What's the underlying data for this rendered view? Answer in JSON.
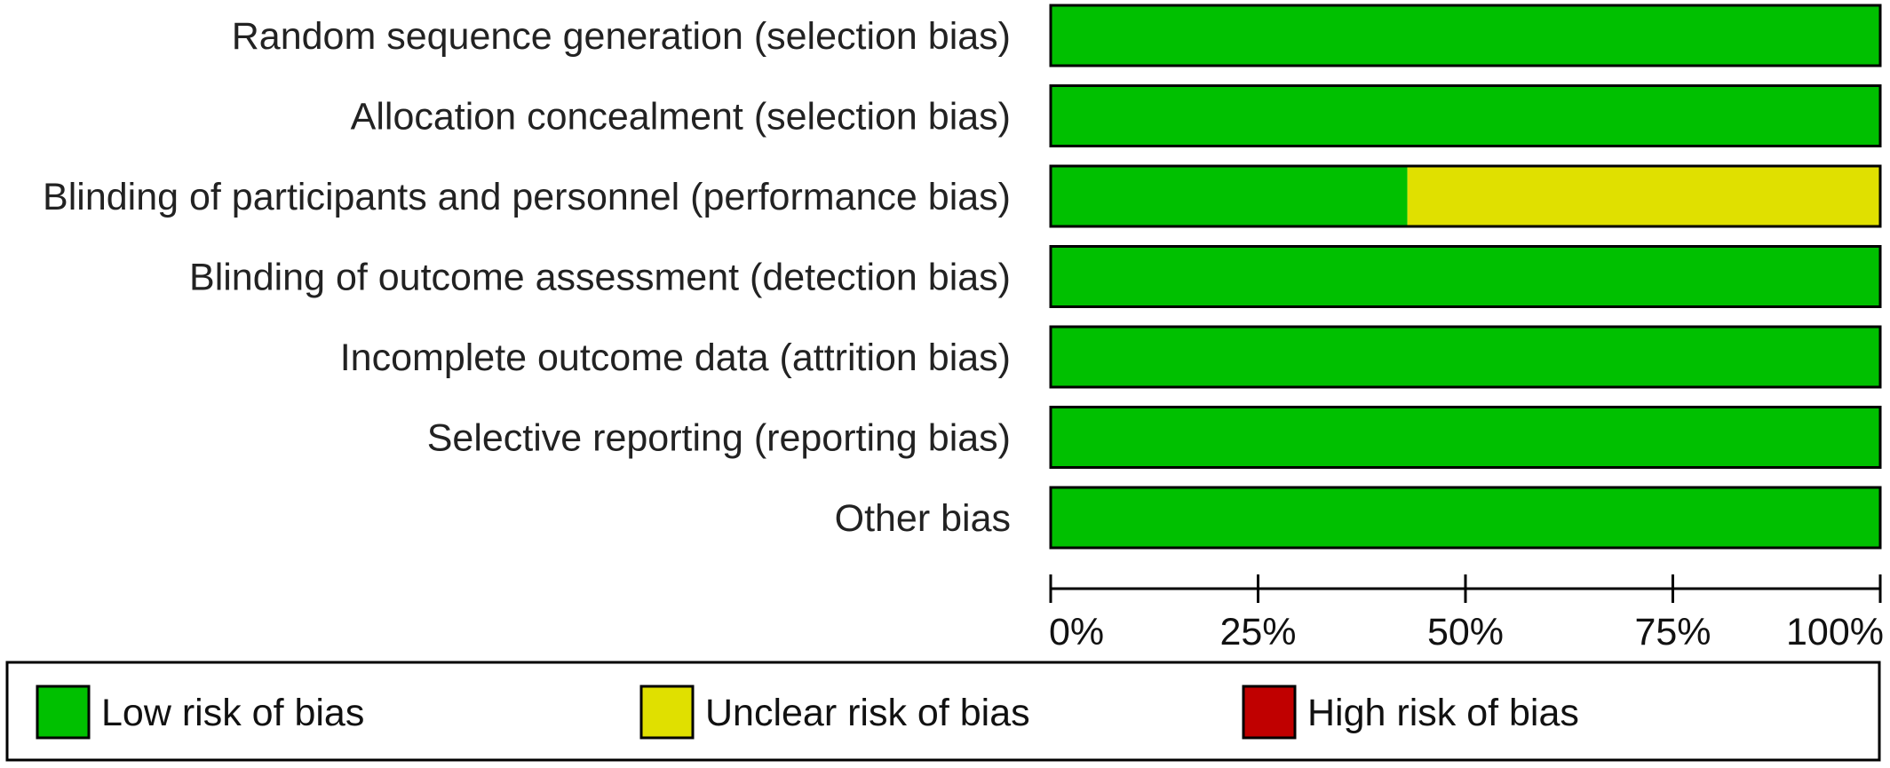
{
  "chart_data": {
    "type": "bar",
    "stacked": true,
    "orientation": "horizontal",
    "categories": [
      "Random sequence generation (selection bias)",
      "Allocation concealment (selection bias)",
      "Blinding of participants and personnel (performance bias)",
      "Blinding of outcome assessment (detection bias)",
      "Incomplete outcome data (attrition bias)",
      "Selective reporting (reporting bias)",
      "Other bias"
    ],
    "series": [
      {
        "name": "Low risk of bias",
        "color": "#00c000",
        "values": [
          100,
          100,
          43,
          100,
          100,
          100,
          100
        ]
      },
      {
        "name": "Unclear risk of bias",
        "color": "#e0e000",
        "values": [
          0,
          0,
          57,
          0,
          0,
          0,
          0
        ]
      },
      {
        "name": "High risk of bias",
        "color": "#c00000",
        "values": [
          0,
          0,
          0,
          0,
          0,
          0,
          0
        ]
      }
    ],
    "xlim": [
      0,
      100
    ],
    "xticks": [
      0,
      25,
      50,
      75,
      100
    ],
    "xtick_labels": [
      "0%",
      "25%",
      "50%",
      "75%",
      "100%"
    ],
    "legend_position": "bottom",
    "grid": false
  }
}
